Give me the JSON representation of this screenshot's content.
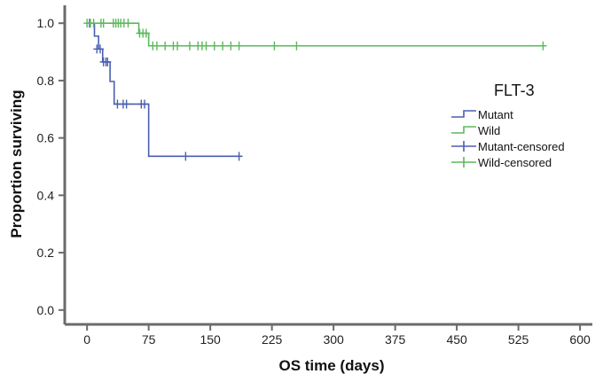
{
  "chart_data": {
    "type": "line",
    "subtype": "kaplan-meier",
    "xlabel": "OS time (days)",
    "ylabel": "Proportion surviving",
    "xlim": [
      -25,
      615
    ],
    "ylim": [
      -0.05,
      1.05
    ],
    "xticks": [
      0,
      75,
      150,
      225,
      300,
      375,
      450,
      525,
      600
    ],
    "xtick_labels": [
      "0",
      "75",
      "150",
      "225",
      "300",
      "375",
      "450",
      "525",
      "600"
    ],
    "yticks": [
      0.0,
      0.2,
      0.4,
      0.6,
      0.8,
      1.0
    ],
    "ytick_labels": [
      "0.0",
      "0.2",
      "0.4",
      "0.6",
      "0.8",
      "1.0"
    ],
    "legend_title": "FLT-3",
    "legend_position": "right",
    "legend": [
      {
        "label": "Mutant",
        "color": "#4a5fb0",
        "kind": "step"
      },
      {
        "label": "Wild",
        "color": "#5cb85c",
        "kind": "step"
      },
      {
        "label": "Mutant-censored",
        "color": "#4a5fb0",
        "kind": "censor"
      },
      {
        "label": "Wild-censored",
        "color": "#5cb85c",
        "kind": "censor"
      }
    ],
    "series": [
      {
        "name": "Mutant",
        "color": "#4a5fb0",
        "steps": [
          [
            0,
            1.0
          ],
          [
            9,
            0.955
          ],
          [
            14,
            0.91
          ],
          [
            19,
            0.865
          ],
          [
            28,
            0.797
          ],
          [
            33,
            0.718
          ],
          [
            75,
            0.536
          ],
          [
            188,
            0.536
          ]
        ],
        "censored": [
          [
            3,
            1.0
          ],
          [
            12,
            0.91
          ],
          [
            16,
            0.91
          ],
          [
            20,
            0.865
          ],
          [
            23,
            0.865
          ],
          [
            25,
            0.865
          ],
          [
            37,
            0.718
          ],
          [
            44,
            0.718
          ],
          [
            48,
            0.718
          ],
          [
            66,
            0.718
          ],
          [
            70,
            0.718
          ],
          [
            120,
            0.536
          ],
          [
            185,
            0.536
          ]
        ]
      },
      {
        "name": "Wild",
        "color": "#5cb85c",
        "steps": [
          [
            0,
            1.0
          ],
          [
            63,
            0.965
          ],
          [
            75,
            0.921
          ],
          [
            555,
            0.921
          ]
        ],
        "censored": [
          [
            0,
            1.0
          ],
          [
            4,
            1.0
          ],
          [
            8,
            1.0
          ],
          [
            17,
            1.0
          ],
          [
            20,
            1.0
          ],
          [
            32,
            1.0
          ],
          [
            35,
            1.0
          ],
          [
            38,
            1.0
          ],
          [
            41,
            1.0
          ],
          [
            45,
            1.0
          ],
          [
            50,
            1.0
          ],
          [
            64,
            0.965
          ],
          [
            68,
            0.965
          ],
          [
            72,
            0.965
          ],
          [
            80,
            0.921
          ],
          [
            85,
            0.921
          ],
          [
            95,
            0.921
          ],
          [
            105,
            0.921
          ],
          [
            110,
            0.921
          ],
          [
            125,
            0.921
          ],
          [
            135,
            0.921
          ],
          [
            140,
            0.921
          ],
          [
            145,
            0.921
          ],
          [
            155,
            0.921
          ],
          [
            165,
            0.921
          ],
          [
            175,
            0.921
          ],
          [
            185,
            0.921
          ],
          [
            228,
            0.921
          ],
          [
            255,
            0.921
          ],
          [
            555,
            0.921
          ]
        ]
      }
    ]
  }
}
